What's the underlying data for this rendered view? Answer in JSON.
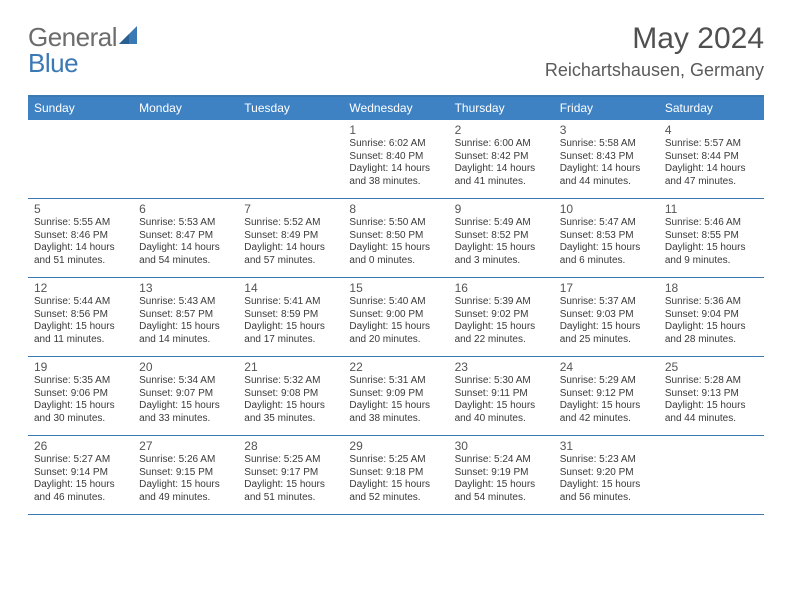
{
  "logo": {
    "part1": "General",
    "part2": "Blue"
  },
  "title": "May 2024",
  "location": "Reichartshausen, Germany",
  "colors": {
    "header_bg": "#3e82c4",
    "rule": "#3b79b4",
    "logo_gray": "#6c6c6c",
    "logo_blue": "#3b79b4",
    "text_gray": "#555555"
  },
  "weekdays": [
    "Sunday",
    "Monday",
    "Tuesday",
    "Wednesday",
    "Thursday",
    "Friday",
    "Saturday"
  ],
  "weeks": [
    [
      null,
      null,
      null,
      {
        "n": "1",
        "sr": "6:02 AM",
        "ss": "8:40 PM",
        "dl": "14 hours and 38 minutes."
      },
      {
        "n": "2",
        "sr": "6:00 AM",
        "ss": "8:42 PM",
        "dl": "14 hours and 41 minutes."
      },
      {
        "n": "3",
        "sr": "5:58 AM",
        "ss": "8:43 PM",
        "dl": "14 hours and 44 minutes."
      },
      {
        "n": "4",
        "sr": "5:57 AM",
        "ss": "8:44 PM",
        "dl": "14 hours and 47 minutes."
      }
    ],
    [
      {
        "n": "5",
        "sr": "5:55 AM",
        "ss": "8:46 PM",
        "dl": "14 hours and 51 minutes."
      },
      {
        "n": "6",
        "sr": "5:53 AM",
        "ss": "8:47 PM",
        "dl": "14 hours and 54 minutes."
      },
      {
        "n": "7",
        "sr": "5:52 AM",
        "ss": "8:49 PM",
        "dl": "14 hours and 57 minutes."
      },
      {
        "n": "8",
        "sr": "5:50 AM",
        "ss": "8:50 PM",
        "dl": "15 hours and 0 minutes."
      },
      {
        "n": "9",
        "sr": "5:49 AM",
        "ss": "8:52 PM",
        "dl": "15 hours and 3 minutes."
      },
      {
        "n": "10",
        "sr": "5:47 AM",
        "ss": "8:53 PM",
        "dl": "15 hours and 6 minutes."
      },
      {
        "n": "11",
        "sr": "5:46 AM",
        "ss": "8:55 PM",
        "dl": "15 hours and 9 minutes."
      }
    ],
    [
      {
        "n": "12",
        "sr": "5:44 AM",
        "ss": "8:56 PM",
        "dl": "15 hours and 11 minutes."
      },
      {
        "n": "13",
        "sr": "5:43 AM",
        "ss": "8:57 PM",
        "dl": "15 hours and 14 minutes."
      },
      {
        "n": "14",
        "sr": "5:41 AM",
        "ss": "8:59 PM",
        "dl": "15 hours and 17 minutes."
      },
      {
        "n": "15",
        "sr": "5:40 AM",
        "ss": "9:00 PM",
        "dl": "15 hours and 20 minutes."
      },
      {
        "n": "16",
        "sr": "5:39 AM",
        "ss": "9:02 PM",
        "dl": "15 hours and 22 minutes."
      },
      {
        "n": "17",
        "sr": "5:37 AM",
        "ss": "9:03 PM",
        "dl": "15 hours and 25 minutes."
      },
      {
        "n": "18",
        "sr": "5:36 AM",
        "ss": "9:04 PM",
        "dl": "15 hours and 28 minutes."
      }
    ],
    [
      {
        "n": "19",
        "sr": "5:35 AM",
        "ss": "9:06 PM",
        "dl": "15 hours and 30 minutes."
      },
      {
        "n": "20",
        "sr": "5:34 AM",
        "ss": "9:07 PM",
        "dl": "15 hours and 33 minutes."
      },
      {
        "n": "21",
        "sr": "5:32 AM",
        "ss": "9:08 PM",
        "dl": "15 hours and 35 minutes."
      },
      {
        "n": "22",
        "sr": "5:31 AM",
        "ss": "9:09 PM",
        "dl": "15 hours and 38 minutes."
      },
      {
        "n": "23",
        "sr": "5:30 AM",
        "ss": "9:11 PM",
        "dl": "15 hours and 40 minutes."
      },
      {
        "n": "24",
        "sr": "5:29 AM",
        "ss": "9:12 PM",
        "dl": "15 hours and 42 minutes."
      },
      {
        "n": "25",
        "sr": "5:28 AM",
        "ss": "9:13 PM",
        "dl": "15 hours and 44 minutes."
      }
    ],
    [
      {
        "n": "26",
        "sr": "5:27 AM",
        "ss": "9:14 PM",
        "dl": "15 hours and 46 minutes."
      },
      {
        "n": "27",
        "sr": "5:26 AM",
        "ss": "9:15 PM",
        "dl": "15 hours and 49 minutes."
      },
      {
        "n": "28",
        "sr": "5:25 AM",
        "ss": "9:17 PM",
        "dl": "15 hours and 51 minutes."
      },
      {
        "n": "29",
        "sr": "5:25 AM",
        "ss": "9:18 PM",
        "dl": "15 hours and 52 minutes."
      },
      {
        "n": "30",
        "sr": "5:24 AM",
        "ss": "9:19 PM",
        "dl": "15 hours and 54 minutes."
      },
      {
        "n": "31",
        "sr": "5:23 AM",
        "ss": "9:20 PM",
        "dl": "15 hours and 56 minutes."
      },
      null
    ]
  ],
  "labels": {
    "sunrise": "Sunrise:",
    "sunset": "Sunset:",
    "daylight": "Daylight:"
  }
}
